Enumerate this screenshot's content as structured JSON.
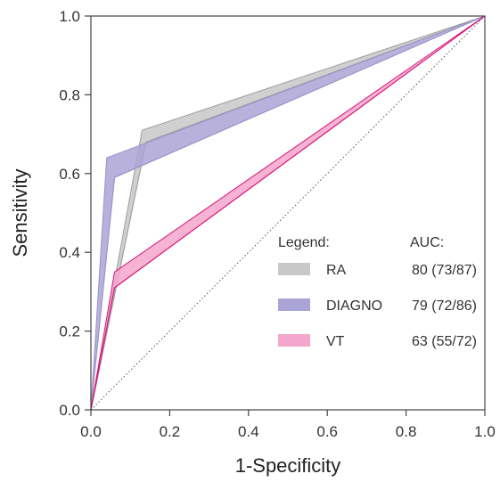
{
  "chart_data": {
    "type": "line",
    "xlabel": "1-Specificity",
    "ylabel": "Sensitivity",
    "xlim": [
      0,
      1
    ],
    "ylim": [
      0,
      1
    ],
    "x_ticks": [
      "0.0",
      "0.2",
      "0.4",
      "0.6",
      "0.8",
      "1.0"
    ],
    "y_ticks": [
      "0.0",
      "0.2",
      "0.4",
      "0.6",
      "0.8",
      "1.0"
    ],
    "grid": false,
    "reference_line": {
      "x": [
        0,
        1
      ],
      "y": [
        0,
        1
      ],
      "style": "dotted"
    },
    "legend": {
      "title": "Legend:",
      "value_title": "AUC:",
      "placement": "center-right"
    },
    "series": [
      {
        "name": "RA",
        "auc": "80 (73/87)",
        "color": "#9e9e9e",
        "fill": "#c8c8c8",
        "upper": {
          "x": [
            0,
            0.13,
            1
          ],
          "y": [
            0,
            0.71,
            1
          ]
        },
        "lower": {
          "x": [
            0,
            0.14,
            1
          ],
          "y": [
            0,
            0.68,
            1
          ]
        }
      },
      {
        "name": "DIAGNO",
        "auc": "79 (72/86)",
        "color": "#9b94c9",
        "fill": "#aaa3d6",
        "upper": {
          "x": [
            0,
            0.04,
            1
          ],
          "y": [
            0,
            0.64,
            1
          ]
        },
        "lower": {
          "x": [
            0,
            0.06,
            1
          ],
          "y": [
            0,
            0.59,
            1
          ]
        }
      },
      {
        "name": "VT",
        "auc": "63 (55/72)",
        "color": "#d6177a",
        "fill": "#f4a6cc",
        "upper": {
          "x": [
            0,
            0.06,
            1
          ],
          "y": [
            0,
            0.35,
            1
          ]
        },
        "lower": {
          "x": [
            0,
            0.06,
            1
          ],
          "y": [
            0,
            0.31,
            1
          ]
        }
      }
    ]
  }
}
